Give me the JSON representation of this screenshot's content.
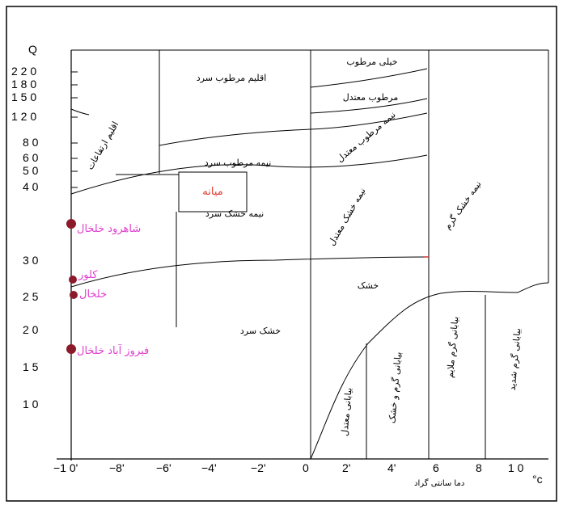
{
  "diagram": {
    "y_axis_label": "Q",
    "x_axis_caption": "دما سانتی گراد",
    "x_axis_unit": "°c",
    "y_ticks": [
      "2 2 0",
      "1 8 0",
      "1 5 0",
      "1 2 0",
      "8 0",
      "6 0",
      "5 0",
      "4 0",
      "3 0",
      "2 5",
      "2 0",
      "1 5",
      "1 0"
    ],
    "x_ticks": [
      "−1 0'",
      "−8'",
      "−6'",
      "−4'",
      "−2'",
      "0",
      "2'",
      "4'",
      "6",
      "8",
      "1 0"
    ],
    "zones": {
      "very_humid": "خیلی مرطوب",
      "humid_cold": "اقلیم مرطوب سرد",
      "humid_moderate": "مرطوب معتدل",
      "semi_humid_moderate": "نیمه مرطوب معتدل",
      "semi_humid_cold": "نیمه مرطوب سرد",
      "semi_arid_cold": "نیمه خشک سرد",
      "semi_arid_moderate": "نیمه خشک معتدل",
      "semi_arid_warm": "نیمه خشک گرم",
      "arid": "خشک",
      "arid_cold": "خشک سرد",
      "highland": "اقلیم ارتفاعات",
      "desert_moderate": "بیابانی معتدل",
      "desert_warm_extreme_1": "بیابانی گرم و خشک",
      "desert_warm_mild": "بیابانی گرم ملایم",
      "desert_warm_extreme_2": "بیابانی گرم شدید"
    },
    "highlight_box": "میانه",
    "stations": [
      {
        "name": "شاهرود خلخال",
        "Q": 37
      },
      {
        "name": "کلور",
        "Q": 28
      },
      {
        "name": "خلخال",
        "Q": 26
      },
      {
        "name": "فیروز آباد خلخال",
        "Q": 18
      }
    ],
    "colors": {
      "station_marker": "#8b1a2b",
      "station_label": "#e040d0",
      "highlight_text": "#e03a2a",
      "border": "#000000"
    }
  }
}
